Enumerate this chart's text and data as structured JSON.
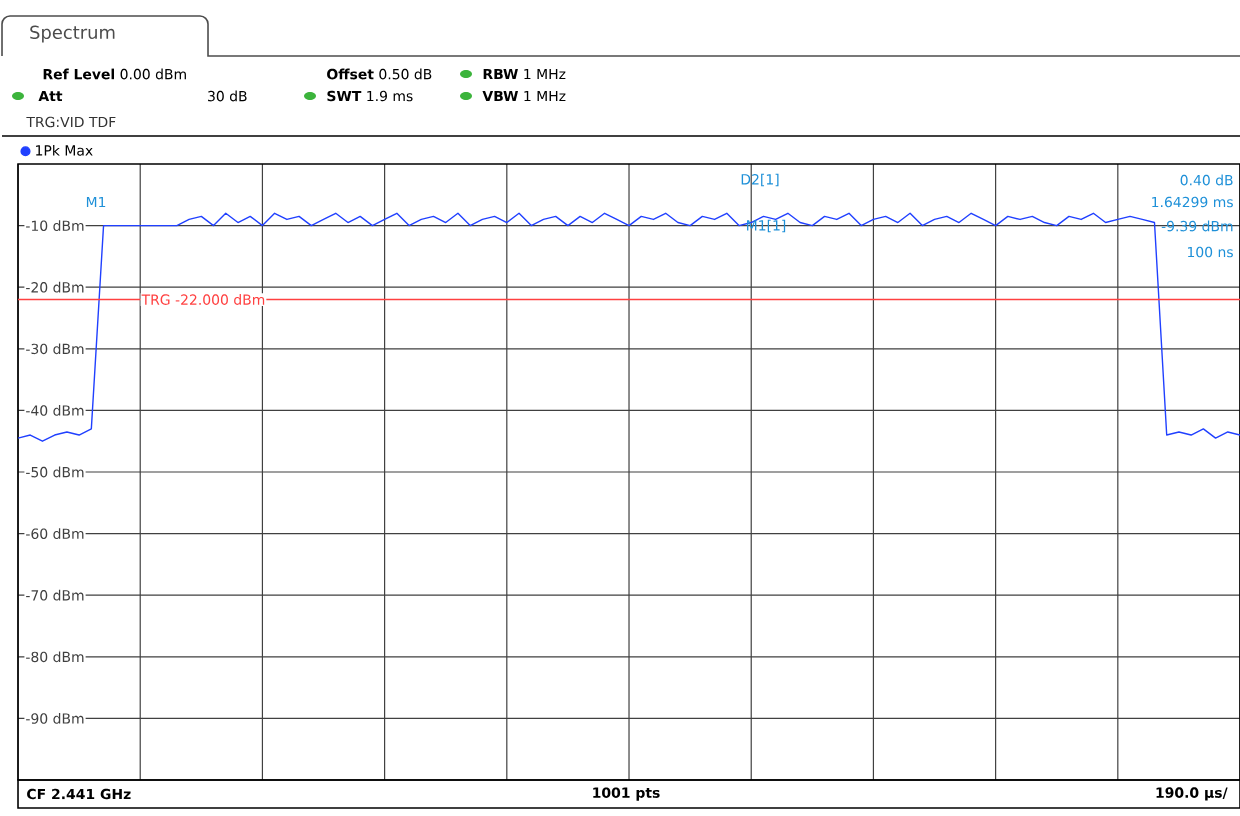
{
  "chart_data": {
    "type": "line",
    "title": "Spectrum",
    "categories": [
      null,
      null,
      null,
      null,
      null,
      null,
      null,
      null,
      null,
      null,
      null,
      null,
      null,
      null,
      null,
      null,
      null,
      null,
      null,
      null,
      null,
      null,
      null,
      null,
      null,
      null,
      null,
      null,
      null,
      null,
      null,
      null,
      null,
      null,
      null,
      null,
      null,
      null,
      null,
      null,
      null,
      null,
      null,
      null,
      null,
      null,
      null,
      null,
      null,
      null,
      null,
      null,
      null,
      null,
      null,
      null,
      null,
      null,
      null,
      null,
      null,
      null,
      null,
      null,
      null,
      null,
      null,
      null,
      null,
      null,
      null,
      null,
      null,
      null,
      null,
      null,
      null,
      null,
      null,
      null,
      null,
      null,
      null,
      null,
      null,
      null,
      null,
      null,
      null,
      null,
      null,
      null,
      null,
      null,
      null,
      null,
      null,
      null,
      null,
      null,
      null
    ],
    "series": [
      {
        "name": "1Pk Max",
        "color": "#2040ff",
        "values": [
          -44.5,
          -44,
          -45,
          -44,
          -43.5,
          -44,
          -43,
          -10,
          -10,
          -10,
          -10,
          -10,
          -10,
          -10,
          -9,
          -8.5,
          -10,
          -8,
          -9.5,
          -8.5,
          -10,
          -8,
          -9,
          -8.5,
          -10,
          -9,
          -8,
          -9.5,
          -8.5,
          -10,
          -9,
          -8,
          -10,
          -9,
          -8.5,
          -9.5,
          -8,
          -10,
          -9,
          -8.5,
          -9.5,
          -8,
          -10,
          -9,
          -8.5,
          -10,
          -8.5,
          -9.5,
          -8,
          -9,
          -10,
          -8.5,
          -9,
          -8,
          -9.5,
          -10,
          -8.5,
          -9,
          -8,
          -10,
          -9.5,
          -8.5,
          -9,
          -8,
          -9.5,
          -10,
          -8.5,
          -9,
          -8,
          -10,
          -9,
          -8.5,
          -9.5,
          -8,
          -10,
          -9,
          -8.5,
          -9.5,
          -8,
          -9,
          -10,
          -8.5,
          -9,
          -8.5,
          -9.5,
          -10,
          -8.5,
          -9,
          -8,
          -9.5,
          -9,
          -8.5,
          -9,
          -9.5,
          -44,
          -43.5,
          -44,
          -43,
          -44.5,
          -43.5,
          -44
        ]
      }
    ],
    "ylim": [
      -100,
      0
    ],
    "yticks": [
      {
        "value": -10,
        "label": "-10 dBm"
      },
      {
        "value": -20,
        "label": "-20 dBm"
      },
      {
        "value": -30,
        "label": "-30 dBm"
      },
      {
        "value": -40,
        "label": "-40 dBm"
      },
      {
        "value": -50,
        "label": "-50 dBm"
      },
      {
        "value": -60,
        "label": "-60 dBm"
      },
      {
        "value": -70,
        "label": "-70 dBm"
      },
      {
        "value": -80,
        "label": "-80 dBm"
      },
      {
        "value": -90,
        "label": "-90 dBm"
      }
    ],
    "tick_labels": "y",
    "grid": true,
    "legend": "top left",
    "marker": "none",
    "line_style": "solid",
    "ref_lines": [
      {
        "axis": "y",
        "value": -22,
        "label": "TRG  -22.000 dBm",
        "color": "#ff4040"
      }
    ],
    "annotations": [
      "**Ref Level** 0.00 dBm",
      "**Offset** 0.50 dB",
      "**RBW** 1 MHz",
      "**Att**",
      "30 dB",
      "**SWT** 1.9 ms",
      "**VBW** 1 MHz",
      "TRG:VID TDF",
      "M1",
      "D2[1]",
      "M1[1]",
      "0.40 dB",
      "1.64299 ms",
      "-9.39 dBm",
      "100 ns",
      "**CF 2.441 GHz**",
      "**1001 pts**",
      "**190.0 µs/**"
    ]
  }
}
